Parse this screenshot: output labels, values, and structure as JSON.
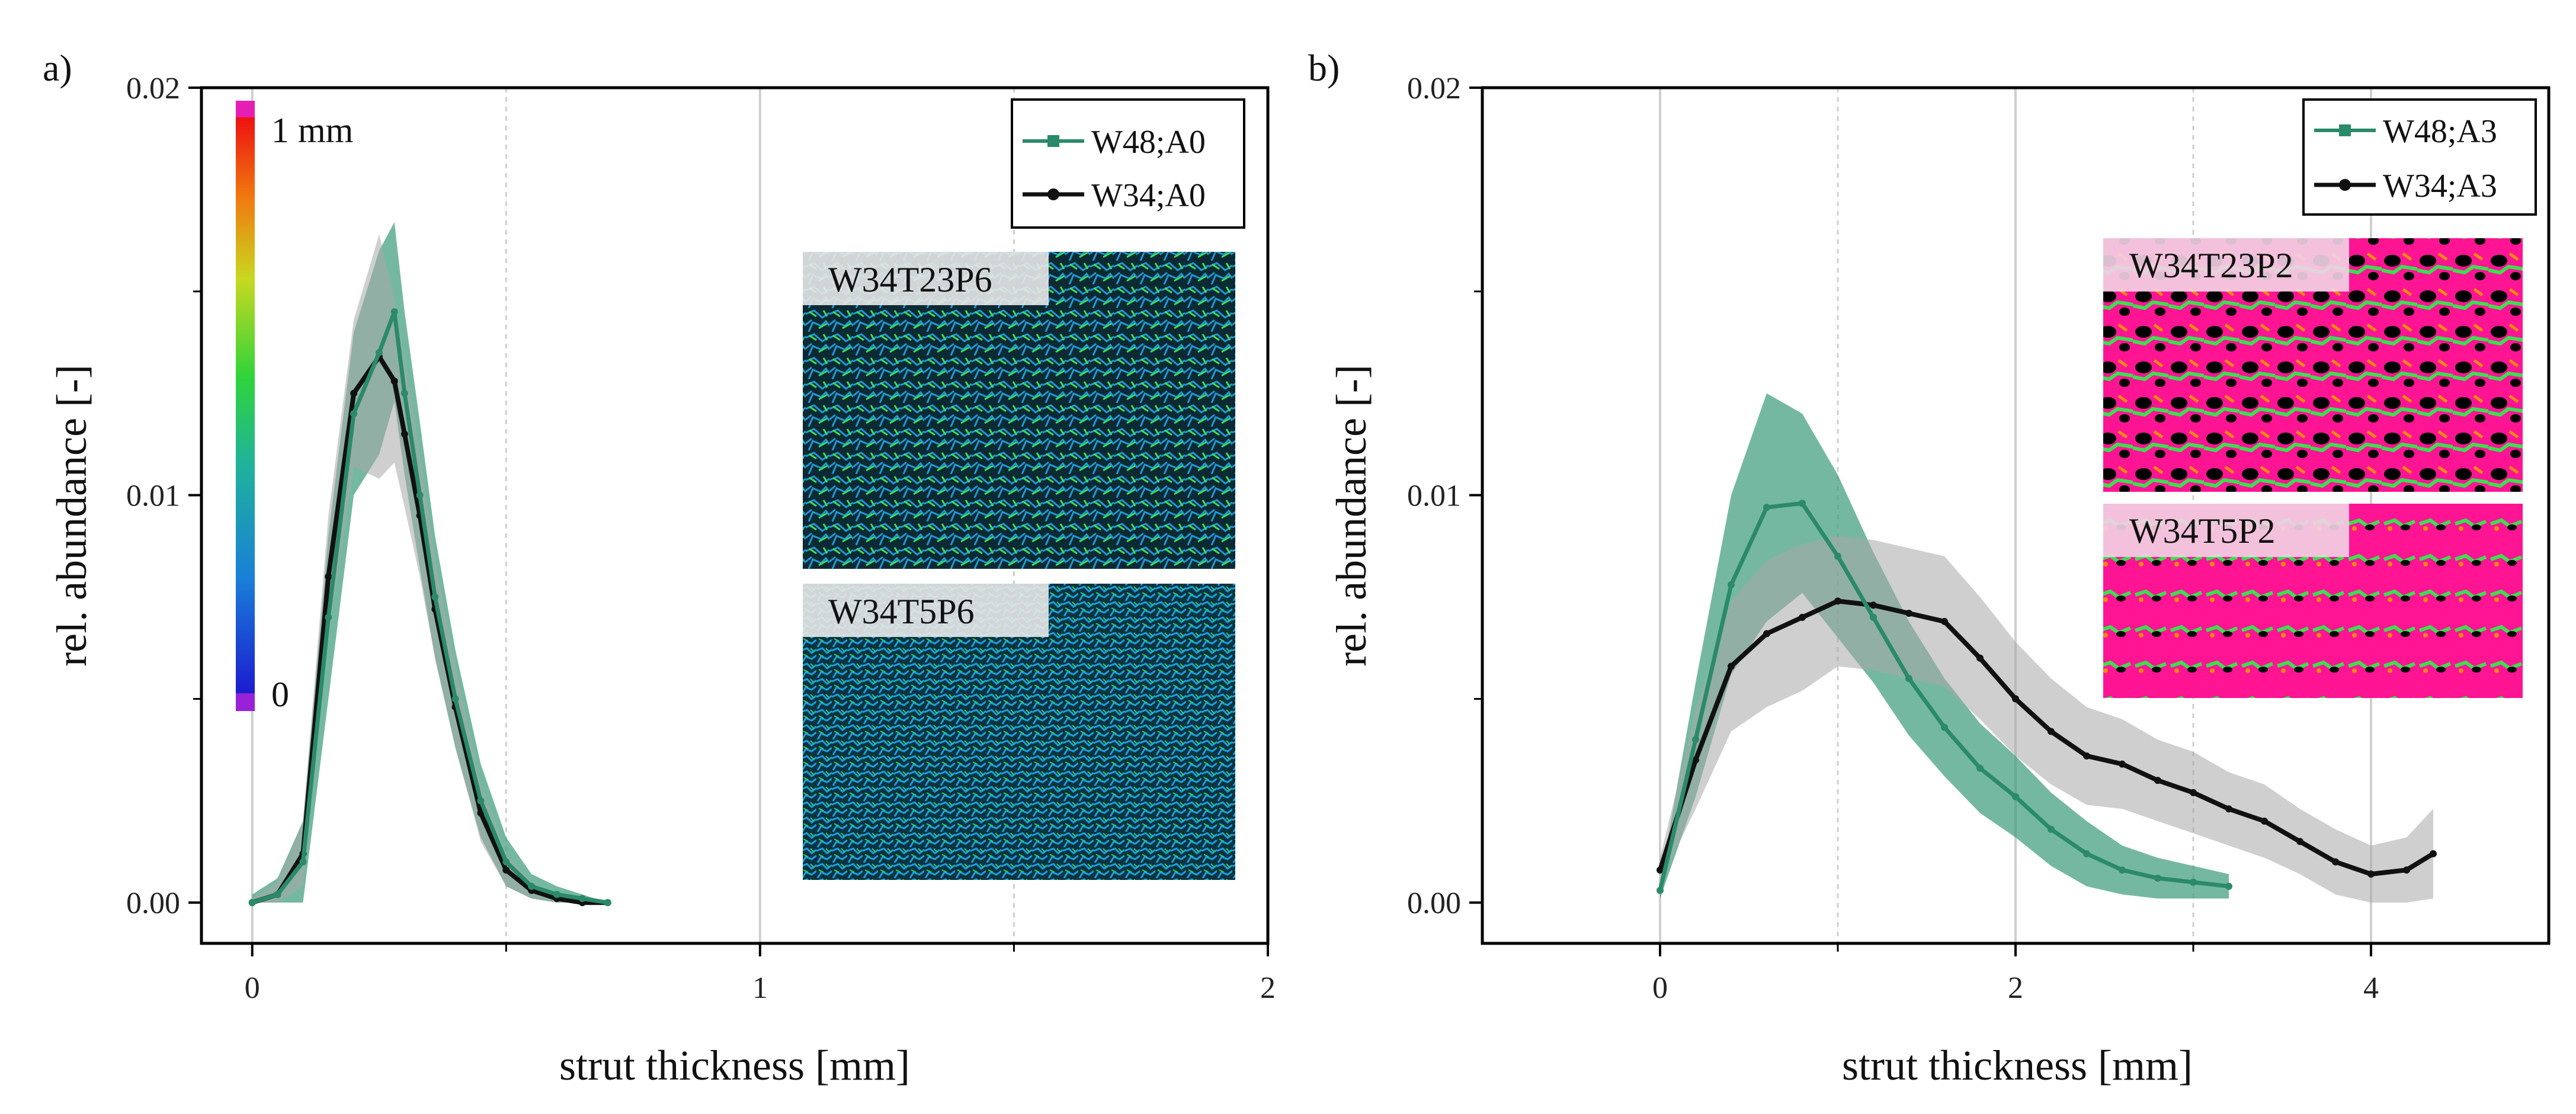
{
  "chart_data": [
    {
      "panel": "a)",
      "type": "line",
      "xlabel": "strut thickness [mm]",
      "ylabel": "rel. abundance [-]",
      "xlim": [
        -0.1,
        2.0
      ],
      "ylim": [
        -0.001,
        0.02
      ],
      "xticks": [
        0,
        1,
        2
      ],
      "xtick_labels": [
        "0",
        "1",
        "2"
      ],
      "yticks": [
        0.0,
        0.01,
        0.02
      ],
      "ytick_labels": [
        "0.00",
        "0.01",
        "0.02"
      ],
      "colorbar": {
        "top_label": "1 mm",
        "bottom_label": "0"
      },
      "insets": [
        "W34T23P6",
        "W34T5P6"
      ],
      "series": [
        {
          "name": "W48;A0",
          "color": "#2a8a6a",
          "band_color": "#3a9a7a",
          "x": [
            0,
            0.05,
            0.1,
            0.15,
            0.2,
            0.25,
            0.28,
            0.3,
            0.33,
            0.36,
            0.4,
            0.45,
            0.5,
            0.55,
            0.6,
            0.65,
            0.7
          ],
          "y": [
            0.0,
            0.0002,
            0.001,
            0.007,
            0.012,
            0.0135,
            0.0145,
            0.0125,
            0.01,
            0.0075,
            0.005,
            0.0025,
            0.001,
            0.0004,
            0.0002,
            0.0001,
            0.0
          ],
          "band": [
            0.0002,
            0.0004,
            0.001,
            0.002,
            0.002,
            0.0025,
            0.0022,
            0.002,
            0.0018,
            0.0015,
            0.0012,
            0.0009,
            0.0006,
            0.0003,
            0.0002,
            0.0001,
            0.0
          ]
        },
        {
          "name": "W34;A0",
          "color": "#111111",
          "band_color": "#a8a8a8",
          "x": [
            0,
            0.05,
            0.1,
            0.15,
            0.2,
            0.25,
            0.28,
            0.3,
            0.33,
            0.36,
            0.4,
            0.45,
            0.5,
            0.55,
            0.6,
            0.65,
            0.7
          ],
          "y": [
            0.0,
            0.0002,
            0.0012,
            0.008,
            0.0125,
            0.0134,
            0.0128,
            0.0115,
            0.0095,
            0.0072,
            0.0048,
            0.0022,
            0.0008,
            0.0003,
            0.0001,
            0.0,
            0.0
          ],
          "band": [
            0.0001,
            0.0003,
            0.0008,
            0.0015,
            0.0018,
            0.003,
            0.002,
            0.0018,
            0.0015,
            0.0012,
            0.001,
            0.0007,
            0.0004,
            0.0002,
            0.0001,
            0.0,
            0.0
          ]
        }
      ]
    },
    {
      "panel": "b)",
      "type": "line",
      "xlabel": "strut thickness [mm]",
      "ylabel": "rel. abundance [-]",
      "xlim": [
        -1.0,
        5.0
      ],
      "ylim": [
        -0.001,
        0.02
      ],
      "xticks": [
        0,
        2,
        4
      ],
      "xtick_labels": [
        "0",
        "2",
        "4"
      ],
      "yticks": [
        0.0,
        0.01,
        0.02
      ],
      "ytick_labels": [
        "0.00",
        "0.01",
        "0.02"
      ],
      "insets": [
        "W34T23P2",
        "W34T5P2"
      ],
      "series": [
        {
          "name": "W48;A3",
          "color": "#2a8a6a",
          "band_color": "#3a9a7a",
          "x": [
            0,
            0.2,
            0.4,
            0.6,
            0.8,
            1.0,
            1.2,
            1.4,
            1.6,
            1.8,
            2.0,
            2.2,
            2.4,
            2.6,
            2.8,
            3.0,
            3.2
          ],
          "y": [
            0.0003,
            0.004,
            0.0078,
            0.0097,
            0.0098,
            0.0085,
            0.007,
            0.0055,
            0.0043,
            0.0033,
            0.0026,
            0.0018,
            0.0012,
            0.0008,
            0.0006,
            0.0005,
            0.0004
          ],
          "band": [
            0.0002,
            0.0014,
            0.0022,
            0.0028,
            0.0022,
            0.002,
            0.0016,
            0.0014,
            0.0012,
            0.0011,
            0.001,
            0.0009,
            0.0008,
            0.0006,
            0.0005,
            0.0004,
            0.0003
          ]
        },
        {
          "name": "W34;A3",
          "color": "#111111",
          "band_color": "#a8a8a8",
          "x": [
            0,
            0.2,
            0.4,
            0.6,
            0.8,
            1.0,
            1.2,
            1.4,
            1.6,
            1.8,
            2.0,
            2.2,
            2.4,
            2.6,
            2.8,
            3.0,
            3.2,
            3.4,
            3.6,
            3.8,
            4.0,
            4.2,
            4.35
          ],
          "y": [
            0.0008,
            0.0035,
            0.0058,
            0.0066,
            0.007,
            0.0074,
            0.0073,
            0.0071,
            0.0069,
            0.006,
            0.005,
            0.0042,
            0.0036,
            0.0034,
            0.003,
            0.0027,
            0.0023,
            0.002,
            0.0015,
            0.001,
            0.0007,
            0.0008,
            0.0012
          ],
          "band": [
            0.0003,
            0.0012,
            0.0016,
            0.0018,
            0.0018,
            0.0016,
            0.0016,
            0.0016,
            0.0016,
            0.0015,
            0.0014,
            0.0013,
            0.0012,
            0.0011,
            0.001,
            0.001,
            0.0009,
            0.0009,
            0.0008,
            0.0008,
            0.0007,
            0.0008,
            0.0011
          ]
        }
      ]
    }
  ]
}
